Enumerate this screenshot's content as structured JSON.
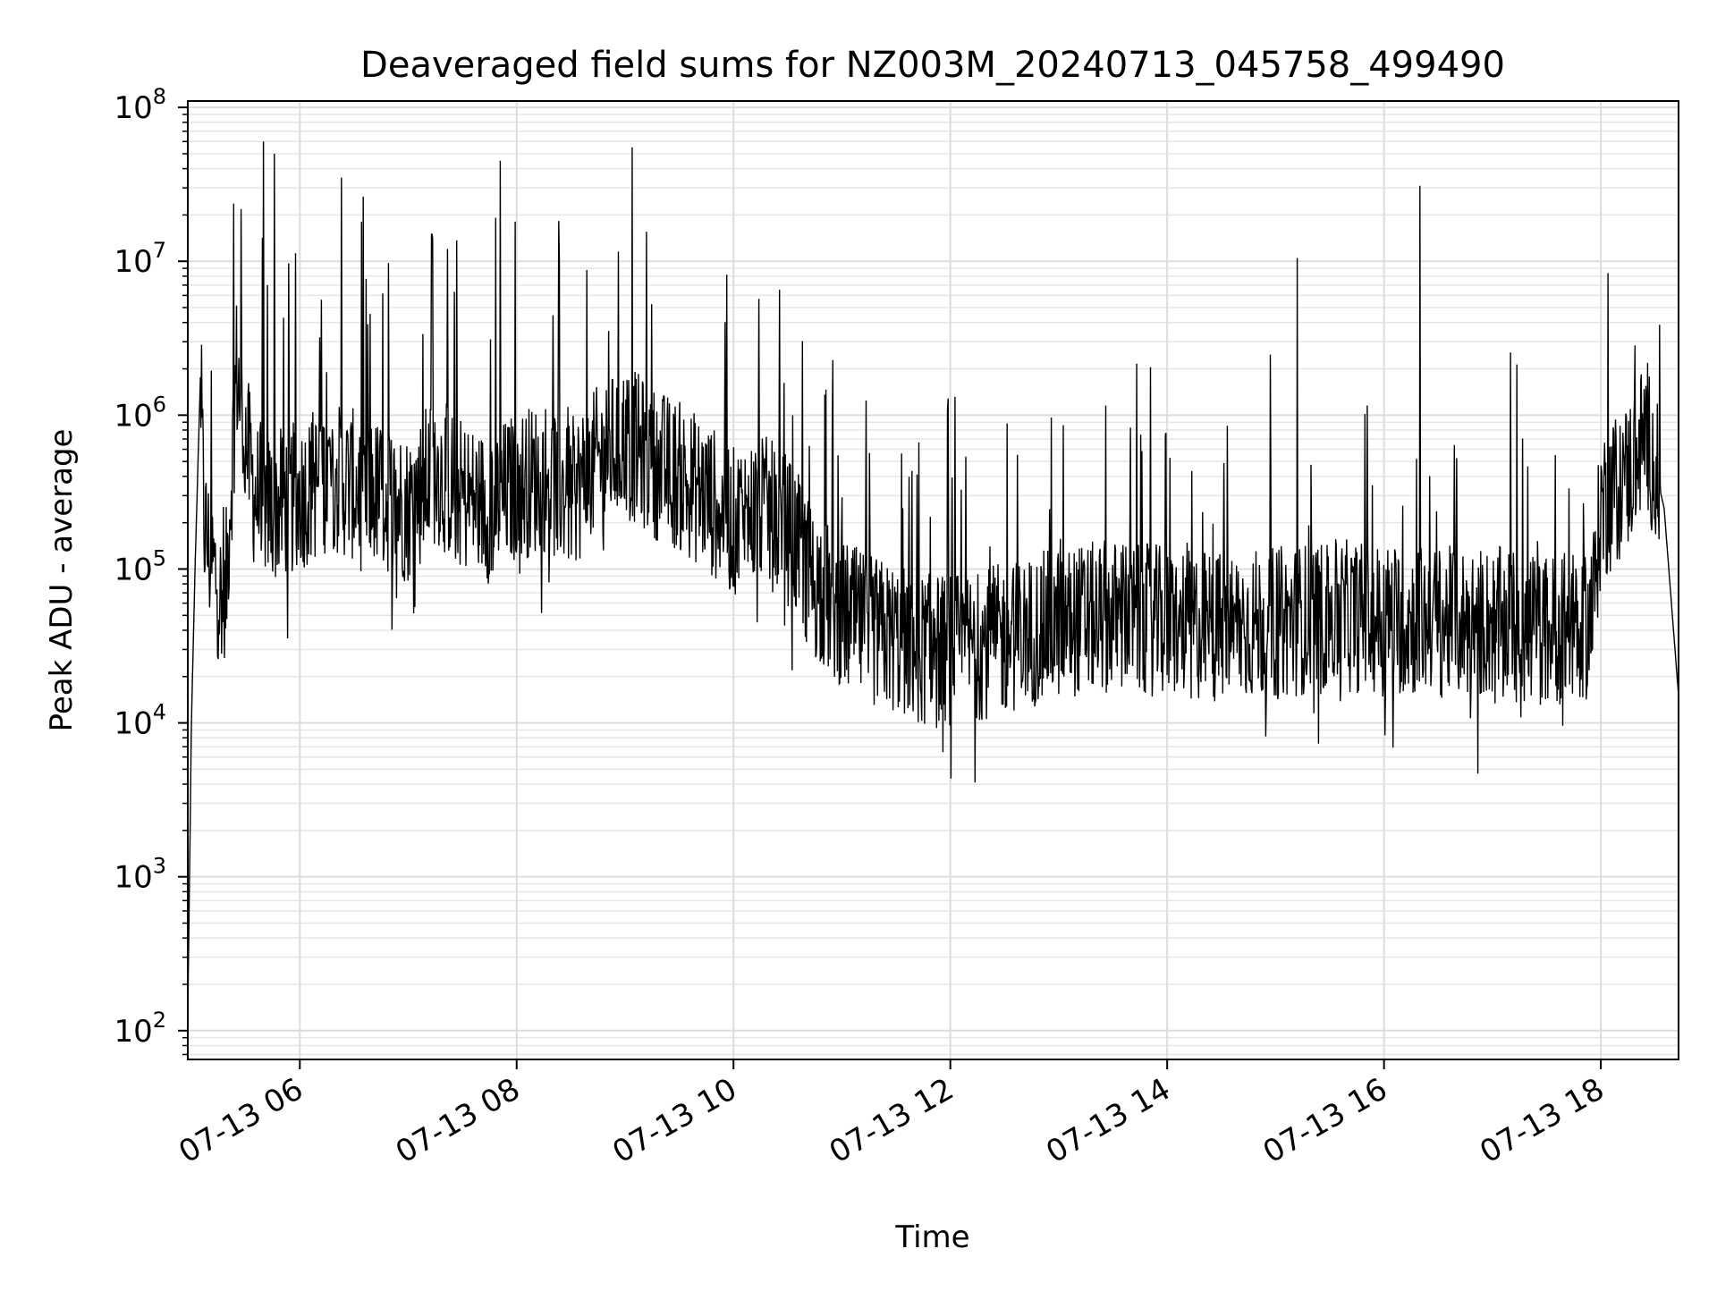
{
  "chart_data": {
    "type": "line",
    "title": "Deaveraged field sums for NZ003M_20240713_045758_499490",
    "xlabel": "Time",
    "ylabel": "Peak ADU - average",
    "yscale": "log",
    "xlim": [
      "2024-07-13 04:58",
      "2024-07-13 18:43"
    ],
    "ylim": [
      65,
      110000000
    ],
    "x_ticks": [
      "07-13 06",
      "07-13 08",
      "07-13 10",
      "07-13 12",
      "07-13 14",
      "07-13 16",
      "07-13 18"
    ],
    "y_ticks": [
      {
        "base": "10",
        "exp": "2",
        "value": 100
      },
      {
        "base": "10",
        "exp": "3",
        "value": 1000
      },
      {
        "base": "10",
        "exp": "4",
        "value": 10000
      },
      {
        "base": "10",
        "exp": "5",
        "value": 100000
      },
      {
        "base": "10",
        "exp": "6",
        "value": 1000000
      },
      {
        "base": "10",
        "exp": "7",
        "value": 10000000
      },
      {
        "base": "10",
        "exp": "8",
        "value": 100000000
      }
    ],
    "grid": "major and minor",
    "line_color": "#000000",
    "series": [
      {
        "x": [
          "2024-07-13 04:58",
          "2024-07-13 05:00",
          "2024-07-13 05:02",
          "2024-07-13 05:05",
          "2024-07-13 05:07",
          "2024-07-13 05:10",
          "2024-07-13 05:15",
          "2024-07-13 05:18",
          "2024-07-13 05:25",
          "2024-07-13 05:30",
          "2024-07-13 05:35",
          "2024-07-13 05:45",
          "2024-07-13 06:00",
          "2024-07-13 06:15",
          "2024-07-13 06:30",
          "2024-07-13 06:45",
          "2024-07-13 07:00",
          "2024-07-13 07:15",
          "2024-07-13 07:30",
          "2024-07-13 07:45",
          "2024-07-13 08:00",
          "2024-07-13 08:15",
          "2024-07-13 08:30",
          "2024-07-13 08:45",
          "2024-07-13 09:00",
          "2024-07-13 09:15",
          "2024-07-13 09:30",
          "2024-07-13 09:45",
          "2024-07-13 10:00",
          "2024-07-13 10:15",
          "2024-07-13 10:30",
          "2024-07-13 10:45",
          "2024-07-13 11:00",
          "2024-07-13 11:15",
          "2024-07-13 11:30",
          "2024-07-13 11:45",
          "2024-07-13 12:00",
          "2024-07-13 12:30",
          "2024-07-13 13:00",
          "2024-07-13 13:30",
          "2024-07-13 14:00",
          "2024-07-13 14:30",
          "2024-07-13 15:00",
          "2024-07-13 15:30",
          "2024-07-13 16:00",
          "2024-07-13 16:30",
          "2024-07-13 17:00",
          "2024-07-13 17:30",
          "2024-07-13 17:55",
          "2024-07-13 18:00",
          "2024-07-13 18:15",
          "2024-07-13 18:25",
          "2024-07-13 18:35",
          "2024-07-13 18:43"
        ],
        "y": [
          120,
          10000,
          100000,
          1800000,
          200000,
          120000,
          80000,
          40000,
          2000000,
          700000,
          300000,
          250000,
          300000,
          400000,
          350000,
          300000,
          250000,
          450000,
          300000,
          250000,
          350000,
          400000,
          300000,
          500000,
          700000,
          500000,
          400000,
          300000,
          200000,
          250000,
          180000,
          80000,
          50000,
          40000,
          35000,
          30000,
          30000,
          35000,
          45000,
          50000,
          45000,
          42000,
          45000,
          50000,
          48000,
          45000,
          45000,
          40000,
          45000,
          250000,
          400000,
          800000,
          250000,
          15000
        ]
      }
    ],
    "spikes": [
      {
        "x": "2024-07-13 05:40",
        "y": 60000000
      },
      {
        "x": "2024-07-13 05:46",
        "y": 50000000
      },
      {
        "x": "2024-07-13 06:23",
        "y": 35000000
      },
      {
        "x": "2024-07-13 07:13",
        "y": 15000000
      },
      {
        "x": "2024-07-13 07:51",
        "y": 45000000
      },
      {
        "x": "2024-07-13 09:04",
        "y": 55000000
      },
      {
        "x": "2024-07-13 15:12",
        "y": 10500000
      },
      {
        "x": "2024-07-13 16:20",
        "y": 31000000
      }
    ]
  }
}
